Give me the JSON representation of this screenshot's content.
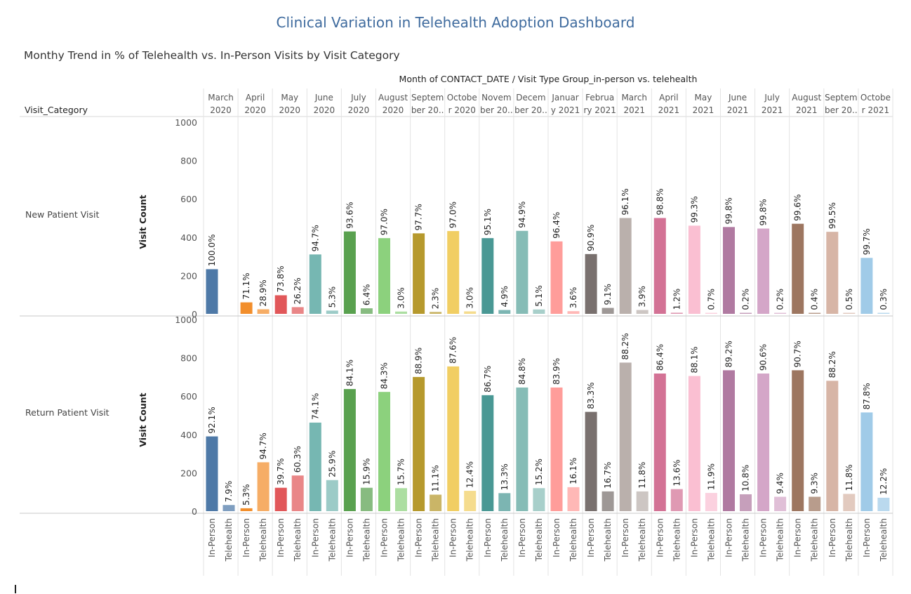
{
  "dashboard_title": "Clinical Variation in Telehealth Adoption Dashboard",
  "chart_data": {
    "type": "bar",
    "title": "Monthy Trend in % of Telehealth vs. In-Person Visits by Visit Category",
    "column_header": "Month of CONTACT_DATE / Visit Type Group_in-person vs. telehealth",
    "row_header": "Visit_Category",
    "ylabel": "Visit Count",
    "ylim": [
      0,
      1000
    ],
    "yticks": [
      0,
      200,
      400,
      600,
      800,
      1000
    ],
    "grid": false,
    "visit_types": [
      "In-Person",
      "Telehealth"
    ],
    "months": [
      {
        "line1": "March",
        "line2": "2020",
        "color": "#4e79a7"
      },
      {
        "line1": "April",
        "line2": "2020",
        "color": "#f28e2b"
      },
      {
        "line1": "May",
        "line2": "2020",
        "color": "#e15759"
      },
      {
        "line1": "June",
        "line2": "2020",
        "color": "#76b7b2"
      },
      {
        "line1": "July",
        "line2": "2020",
        "color": "#59a14f"
      },
      {
        "line1": "August",
        "line2": "2020",
        "color": "#8cd17d"
      },
      {
        "line1": "Septem",
        "line2": "ber 20..",
        "color": "#b6992d"
      },
      {
        "line1": "Octobe",
        "line2": "r 2020",
        "color": "#f1ce63"
      },
      {
        "line1": "Novem",
        "line2": "ber 20..",
        "color": "#499894"
      },
      {
        "line1": "Decem",
        "line2": "ber 20..",
        "color": "#86bcb6"
      },
      {
        "line1": "Januar",
        "line2": "y 2021",
        "color": "#ff9d9a"
      },
      {
        "line1": "Februa",
        "line2": "ry 2021",
        "color": "#79706e"
      },
      {
        "line1": "March",
        "line2": "2021",
        "color": "#bab0ac"
      },
      {
        "line1": "April",
        "line2": "2021",
        "color": "#d37295"
      },
      {
        "line1": "May",
        "line2": "2021",
        "color": "#fabfd2"
      },
      {
        "line1": "June",
        "line2": "2021",
        "color": "#b07aa1"
      },
      {
        "line1": "July",
        "line2": "2021",
        "color": "#d4a6c8"
      },
      {
        "line1": "August",
        "line2": "2021",
        "color": "#9d7660"
      },
      {
        "line1": "Septem",
        "line2": "ber 20..",
        "color": "#d7b5a6"
      },
      {
        "line1": "Octobe",
        "line2": "r 2021",
        "color": "#a0cbe8"
      }
    ],
    "panels": [
      {
        "category": "New Patient Visit",
        "in_person": [
          233,
          60,
          97,
          310,
          430,
          395,
          420,
          432,
          395,
          433,
          378,
          312,
          500,
          500,
          460,
          453,
          445,
          470,
          428,
          292
        ],
        "telehealth": [
          0,
          24,
          35,
          17,
          29,
          12,
          10,
          13,
          20,
          23,
          14,
          31,
          20,
          6,
          3,
          1,
          1,
          2,
          2,
          1
        ],
        "in_person_pct": [
          "100.0%",
          "71.1%",
          "73.8%",
          "94.7%",
          "93.6%",
          "97.0%",
          "97.7%",
          "97.0%",
          "95.1%",
          "94.9%",
          "96.4%",
          "90.9%",
          "96.1%",
          "98.8%",
          "99.3%",
          "99.8%",
          "99.8%",
          "99.6%",
          "99.5%",
          "99.7%"
        ],
        "telehealth_pct": [
          "",
          "28.9%",
          "26.2%",
          "5.3%",
          "6.4%",
          "3.0%",
          "2.3%",
          "3.0%",
          "4.9%",
          "5.1%",
          "3.6%",
          "9.1%",
          "3.9%",
          "1.2%",
          "0.7%",
          "0.2%",
          "0.2%",
          "0.4%",
          "0.5%",
          "0.3%"
        ]
      },
      {
        "category": "Return Patient Visit",
        "in_person": [
          390,
          15,
          122,
          462,
          637,
          622,
          700,
          755,
          605,
          645,
          645,
          518,
          775,
          718,
          705,
          735,
          718,
          735,
          680,
          515
        ],
        "telehealth": [
          32,
          255,
          186,
          162,
          122,
          120,
          86,
          106,
          94,
          120,
          125,
          103,
          103,
          115,
          95,
          88,
          75,
          75,
          90,
          70
        ],
        "in_person_pct": [
          "92.1%",
          "5.3%",
          "39.7%",
          "74.1%",
          "84.1%",
          "84.3%",
          "88.9%",
          "87.6%",
          "86.7%",
          "84.8%",
          "83.9%",
          "83.3%",
          "88.2%",
          "86.4%",
          "88.1%",
          "89.2%",
          "90.6%",
          "90.7%",
          "88.2%",
          "87.8%"
        ],
        "telehealth_pct": [
          "7.9%",
          "94.7%",
          "60.3%",
          "25.9%",
          "15.9%",
          "15.7%",
          "11.1%",
          "12.4%",
          "13.3%",
          "15.2%",
          "16.1%",
          "16.7%",
          "11.8%",
          "13.6%",
          "11.9%",
          "10.8%",
          "9.4%",
          "9.3%",
          "11.8%",
          "12.2%"
        ]
      }
    ]
  }
}
